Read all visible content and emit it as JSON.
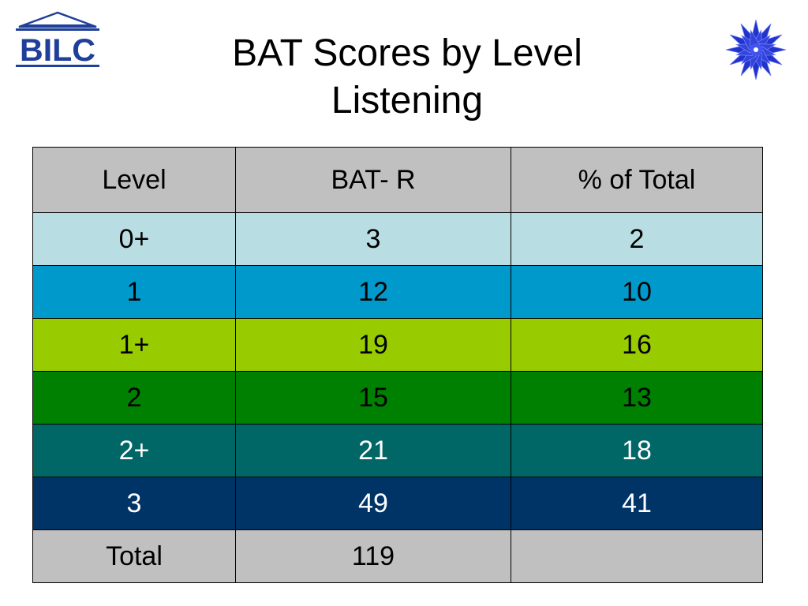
{
  "logo": {
    "text": "BILC"
  },
  "title": {
    "line1": "BAT Scores by Level",
    "line2": "Listening"
  },
  "table": {
    "headers": [
      "Level",
      "BAT- R",
      "% of Total"
    ],
    "rows": [
      {
        "cells": [
          "0+",
          "3",
          "2"
        ],
        "bg": "#b8dde2",
        "fg": "#000000"
      },
      {
        "cells": [
          "1",
          "12",
          "10"
        ],
        "bg": "#0099cc",
        "fg": "#000000"
      },
      {
        "cells": [
          "1+",
          "19",
          "16"
        ],
        "bg": "#99cc00",
        "fg": "#000000"
      },
      {
        "cells": [
          "2",
          "15",
          "13"
        ],
        "bg": "#008000",
        "fg": "#000000"
      },
      {
        "cells": [
          "2+",
          "21",
          "18"
        ],
        "bg": "#006666",
        "fg": "#ffffff"
      },
      {
        "cells": [
          "3",
          "49",
          "41"
        ],
        "bg": "#003366",
        "fg": "#ffffff"
      }
    ],
    "total": {
      "label": "Total",
      "value": "119",
      "extra": ""
    },
    "header_bg": "#c0c0c0",
    "total_bg": "#c0c0c0"
  }
}
